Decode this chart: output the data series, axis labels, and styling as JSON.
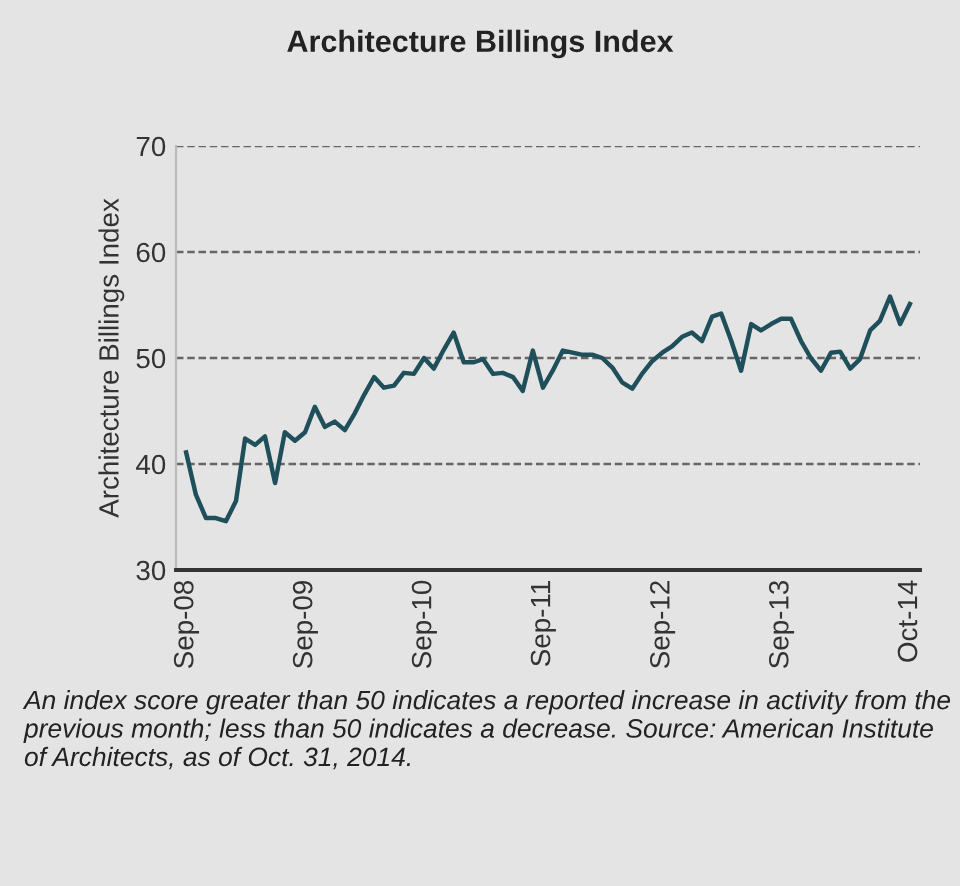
{
  "chart_data": {
    "type": "line",
    "title": "Architecture Billings Index",
    "ylabel": "Architecture Billings Index",
    "annotations": [
      "An index score greater than 50 indicates a reported increase in activity from the previous month; less than 50 indicates a decrease. Source: American Institute of Architects, as of Oct. 31, 2014."
    ],
    "x": [
      "2008-09",
      "2008-10",
      "2008-11",
      "2008-12",
      "2009-01",
      "2009-02",
      "2009-03",
      "2009-04",
      "2009-05",
      "2009-06",
      "2009-07",
      "2009-08",
      "2009-09",
      "2009-10",
      "2009-11",
      "2009-12",
      "2010-01",
      "2010-02",
      "2010-03",
      "2010-04",
      "2010-05",
      "2010-06",
      "2010-07",
      "2010-08",
      "2010-09",
      "2010-10",
      "2010-11",
      "2010-12",
      "2011-01",
      "2011-02",
      "2011-03",
      "2011-04",
      "2011-05",
      "2011-06",
      "2011-07",
      "2011-08",
      "2011-09",
      "2011-10",
      "2011-11",
      "2011-12",
      "2012-01",
      "2012-02",
      "2012-03",
      "2012-04",
      "2012-05",
      "2012-06",
      "2012-07",
      "2012-08",
      "2012-09",
      "2012-10",
      "2012-11",
      "2012-12",
      "2013-01",
      "2013-02",
      "2013-03",
      "2013-04",
      "2013-05",
      "2013-06",
      "2013-07",
      "2013-08",
      "2013-09",
      "2013-10",
      "2013-11",
      "2013-12",
      "2014-01",
      "2014-02",
      "2014-03",
      "2014-04",
      "2014-05",
      "2014-06",
      "2014-07",
      "2014-08",
      "2014-09",
      "2014-10"
    ],
    "series": [
      {
        "color": "#1f4f5a",
        "values": [
          41.1,
          37.1,
          34.9,
          34.9,
          34.6,
          36.5,
          42.4,
          41.8,
          42.6,
          38.2,
          43,
          42.2,
          43,
          45.4,
          43.5,
          44,
          43.2,
          44.8,
          46.5,
          48.2,
          47.2,
          47.4,
          48.6,
          48.5,
          50,
          49,
          50.8,
          52.4,
          49.6,
          49.6,
          49.9,
          48.5,
          48.6,
          48.2,
          46.9,
          50.7,
          47.2,
          48.8,
          50.7,
          50.5,
          50.3,
          50.3,
          50,
          49.1,
          47.7,
          47.1,
          48.5,
          49.7,
          50.5,
          51.1,
          52,
          52.4,
          51.6,
          53.9,
          54.2,
          51.6,
          48.8,
          53.2,
          52.6,
          53.2,
          53.7,
          53.7,
          51.6,
          50,
          48.8,
          50.5,
          50.6,
          49,
          49.9,
          52.6,
          53.5,
          55.8,
          53.2,
          55.1
        ]
      }
    ],
    "xlim": [
      "2008-08",
      "2014-11"
    ],
    "xticks": [
      {
        "value": "2008-09",
        "label": "Sep-08"
      },
      {
        "value": "2009-09",
        "label": "Sep-09"
      },
      {
        "value": "2010-09",
        "label": "Sep-10"
      },
      {
        "value": "2011-09",
        "label": "Sep-11"
      },
      {
        "value": "2012-09",
        "label": "Sep-12"
      },
      {
        "value": "2013-09",
        "label": "Sep-13"
      },
      {
        "value": "2014-10",
        "label": "Oct-14"
      }
    ],
    "ylim": [
      30,
      70
    ],
    "yticks": [
      30,
      40,
      50,
      60,
      70
    ],
    "grid": "y",
    "legend": false,
    "marker": "none",
    "line_style": "solid"
  }
}
